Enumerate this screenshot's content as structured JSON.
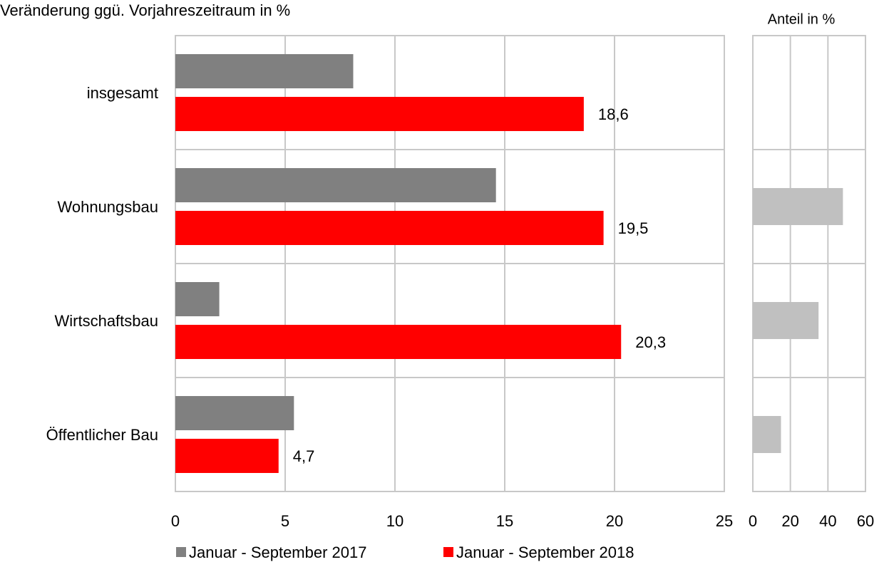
{
  "chart_data": [
    {
      "type": "bar",
      "orientation": "horizontal",
      "title": "Veränderung ggü. Vorjahreszeitraum in %",
      "categories": [
        "insgesamt",
        "Wohnungsbau",
        "Wirtschaftsbau",
        "Öffentlicher Bau"
      ],
      "series": [
        {
          "name": "Januar - September 2017",
          "color": "#808080",
          "values": [
            8.1,
            14.6,
            2.0,
            5.4
          ]
        },
        {
          "name": "Januar - September 2018",
          "color": "#ff0000",
          "values": [
            18.6,
            19.5,
            20.3,
            4.7
          ],
          "value_labels": [
            "18,6",
            "19,5",
            "20,3",
            "4,7"
          ]
        }
      ],
      "xlim": [
        0,
        25
      ],
      "xticks": [
        0,
        5,
        10,
        15,
        20,
        25
      ],
      "grid": true,
      "legend": "bottom"
    },
    {
      "type": "bar",
      "orientation": "horizontal",
      "title": "Anteil in %",
      "values": [
        null,
        48,
        35,
        15
      ],
      "color": "#c0c0c0",
      "xlim": [
        0,
        60
      ],
      "xticks": [
        0,
        20,
        40,
        60
      ],
      "grid": true
    }
  ]
}
